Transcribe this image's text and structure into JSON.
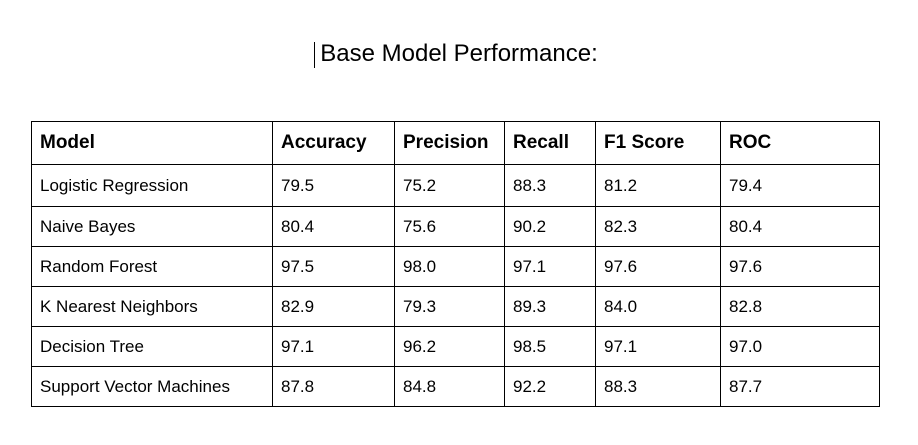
{
  "title": "Base Model Performance:",
  "table": {
    "headers": [
      "Model",
      "Accuracy",
      "Precision",
      "Recall",
      "F1 Score",
      "ROC"
    ],
    "rows": [
      [
        "Logistic Regression",
        "79.5",
        "75.2",
        "88.3",
        "81.2",
        "79.4"
      ],
      [
        "Naive Bayes",
        "80.4",
        "75.6",
        "90.2",
        "82.3",
        "80.4"
      ],
      [
        "Random Forest",
        "97.5",
        "98.0",
        "97.1",
        "97.6",
        "97.6"
      ],
      [
        "K Nearest Neighbors",
        "82.9",
        "79.3",
        "89.3",
        "84.0",
        "82.8"
      ],
      [
        "Decision Tree",
        "97.1",
        "96.2",
        "98.5",
        "97.1",
        "97.0"
      ],
      [
        "Support Vector Machines",
        "87.8",
        "84.8",
        "92.2",
        "88.3",
        "87.7"
      ]
    ]
  }
}
